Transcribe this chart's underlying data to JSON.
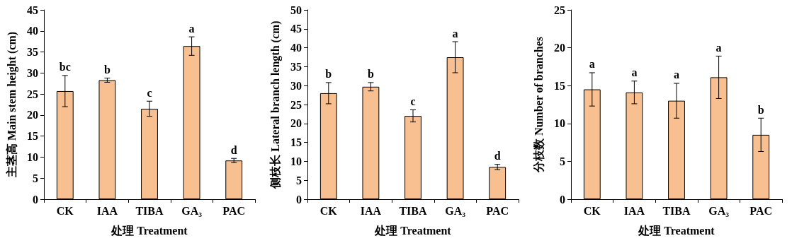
{
  "chart_data": [
    {
      "type": "bar",
      "xlabel": "处理 Treatment",
      "ylabel": "主茎高 Main stem height (cm)",
      "categories": [
        "CK",
        "IAA",
        "TIBA",
        "GA₃",
        "PAC"
      ],
      "color": "#f8c090",
      "values": [
        25.7,
        28.3,
        21.5,
        36.4,
        9.2
      ],
      "errors": [
        3.7,
        0.5,
        1.8,
        2.2,
        0.5
      ],
      "ylim": [
        0,
        45
      ],
      "yticks": [
        0,
        5,
        10,
        15,
        20,
        25,
        30,
        35,
        40,
        45
      ],
      "grid": false,
      "annotations": [
        {
          "text": "bc",
          "x": "CK",
          "y": 29.4
        },
        {
          "text": "b",
          "x": "IAA",
          "y": 28.8
        },
        {
          "text": "c",
          "x": "TIBA",
          "y": 23.3
        },
        {
          "text": "a",
          "x": "GA₃",
          "y": 38.6
        },
        {
          "text": "d",
          "x": "PAC",
          "y": 9.7
        }
      ]
    },
    {
      "type": "bar",
      "xlabel": "处理 Treatment",
      "ylabel": "侧枝长 Lateral branch length (cm)",
      "categories": [
        "CK",
        "IAA",
        "TIBA",
        "GA₃",
        "PAC"
      ],
      "color": "#f8c090",
      "values": [
        28.0,
        29.7,
        22.0,
        37.5,
        8.5
      ],
      "errors": [
        2.8,
        1.1,
        1.6,
        4.1,
        0.7
      ],
      "ylim": [
        0,
        50
      ],
      "yticks": [
        0,
        5,
        10,
        15,
        20,
        25,
        30,
        35,
        40,
        45,
        50
      ],
      "grid": false,
      "annotations": [
        {
          "text": "b",
          "x": "CK",
          "y": 30.8
        },
        {
          "text": "b",
          "x": "IAA",
          "y": 30.8
        },
        {
          "text": "c",
          "x": "TIBA",
          "y": 23.6
        },
        {
          "text": "a",
          "x": "GA₃",
          "y": 41.6
        },
        {
          "text": "d",
          "x": "PAC",
          "y": 9.2
        }
      ]
    },
    {
      "type": "bar",
      "xlabel": "处理 Treatment",
      "ylabel": "分枝数 Number of branches",
      "categories": [
        "CK",
        "IAA",
        "TIBA",
        "GA₃",
        "PAC"
      ],
      "color": "#f8c090",
      "values": [
        14.5,
        14.1,
        13.0,
        16.1,
        8.5
      ],
      "errors": [
        2.2,
        1.5,
        2.3,
        2.8,
        2.2
      ],
      "ylim": [
        0,
        25
      ],
      "yticks": [
        0,
        5,
        10,
        15,
        20,
        25
      ],
      "grid": false,
      "annotations": [
        {
          "text": "a",
          "x": "CK",
          "y": 16.7
        },
        {
          "text": "a",
          "x": "IAA",
          "y": 15.6
        },
        {
          "text": "a",
          "x": "TIBA",
          "y": 15.3
        },
        {
          "text": "a",
          "x": "GA₃",
          "y": 18.9
        },
        {
          "text": "b",
          "x": "PAC",
          "y": 10.7
        }
      ]
    }
  ]
}
